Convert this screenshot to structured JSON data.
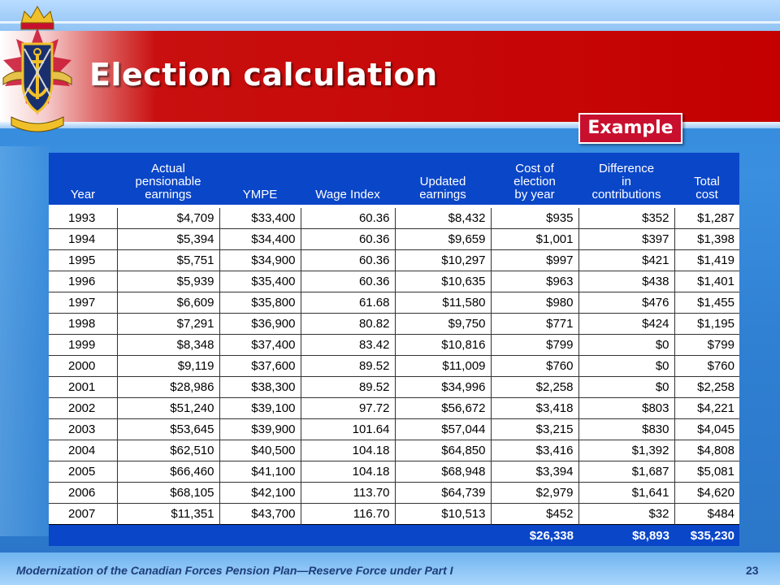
{
  "slide": {
    "title": "Election calculation",
    "badge": "Example",
    "footer": "Modernization of the Canadian Forces Pension Plan—Reserve Force under Part I",
    "page_number": "23"
  },
  "table": {
    "headers": [
      [
        "Year"
      ],
      [
        "Actual",
        "pensionable",
        "earnings"
      ],
      [
        "YMPE"
      ],
      [
        "Wage Index"
      ],
      [
        "Updated",
        "earnings"
      ],
      [
        "Cost of",
        "election",
        "by year"
      ],
      [
        "Difference",
        "in",
        "contributions"
      ],
      [
        "Total",
        "cost"
      ]
    ],
    "rows": [
      [
        "1993",
        "$4,709",
        "$33,400",
        "60.36",
        "$8,432",
        "$935",
        "$352",
        "$1,287"
      ],
      [
        "1994",
        "$5,394",
        "$34,400",
        "60.36",
        "$9,659",
        "$1,001",
        "$397",
        "$1,398"
      ],
      [
        "1995",
        "$5,751",
        "$34,900",
        "60.36",
        "$10,297",
        "$997",
        "$421",
        "$1,419"
      ],
      [
        "1996",
        "$5,939",
        "$35,400",
        "60.36",
        "$10,635",
        "$963",
        "$438",
        "$1,401"
      ],
      [
        "1997",
        "$6,609",
        "$35,800",
        "61.68",
        "$11,580",
        "$980",
        "$476",
        "$1,455"
      ],
      [
        "1998",
        "$7,291",
        "$36,900",
        "80.82",
        "$9,750",
        "$771",
        "$424",
        "$1,195"
      ],
      [
        "1999",
        "$8,348",
        "$37,400",
        "83.42",
        "$10,816",
        "$799",
        "$0",
        "$799"
      ],
      [
        "2000",
        "$9,119",
        "$37,600",
        "89.52",
        "$11,009",
        "$760",
        "$0",
        "$760"
      ],
      [
        "2001",
        "$28,986",
        "$38,300",
        "89.52",
        "$34,996",
        "$2,258",
        "$0",
        "$2,258"
      ],
      [
        "2002",
        "$51,240",
        "$39,100",
        "97.72",
        "$56,672",
        "$3,418",
        "$803",
        "$4,221"
      ],
      [
        "2003",
        "$53,645",
        "$39,900",
        "101.64",
        "$57,044",
        "$3,215",
        "$830",
        "$4,045"
      ],
      [
        "2004",
        "$62,510",
        "$40,500",
        "104.18",
        "$64,850",
        "$3,416",
        "$1,392",
        "$4,808"
      ],
      [
        "2005",
        "$66,460",
        "$41,100",
        "104.18",
        "$68,948",
        "$3,394",
        "$1,687",
        "$5,081"
      ],
      [
        "2006",
        "$68,105",
        "$42,100",
        "113.70",
        "$64,739",
        "$2,979",
        "$1,641",
        "$4,620"
      ],
      [
        "2007",
        "$11,351",
        "$43,700",
        "116.70",
        "$10,513",
        "$452",
        "$32",
        "$484"
      ]
    ],
    "totals": [
      "",
      "",
      "",
      "",
      "",
      "$26,338",
      "$8,893",
      "$35,230"
    ]
  },
  "icons": {
    "crest": "canadian-forces-crest-icon"
  },
  "colors": {
    "banner_red": "#c40000",
    "badge_red": "#c8102e",
    "table_header_blue": "#0a46c8",
    "background_blue": "#2f86d8"
  }
}
